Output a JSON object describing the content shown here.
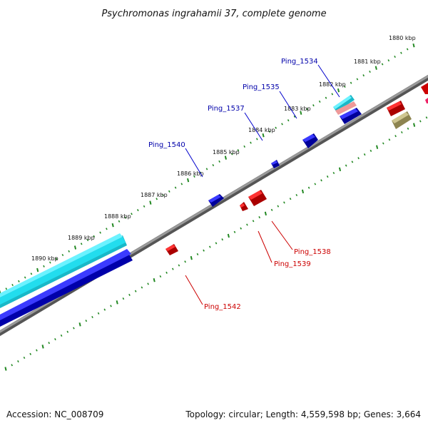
{
  "title": "Psychromonas ingrahamii 37, complete genome",
  "footer": {
    "accession": "Accession: NC_008709",
    "summary": "Topology: circular; Length: 4,559,598 bp; Genes: 3,664"
  },
  "scale_labels": [
    "1880 kbp",
    "1881 kbp",
    "1882 kbp",
    "1883 kbp",
    "1884 kbp",
    "1885 kbp",
    "1886 kbp",
    "1887 kbp",
    "1888 kbp",
    "1889 kbp",
    "1890 kbp"
  ],
  "gene_labels": {
    "ping_1534": "Ping_1534",
    "ping_1535": "Ping_1535",
    "ping_1537": "Ping_1537",
    "ping_1540": "Ping_1540",
    "ping_1538": "Ping_1538",
    "ping_1539": "Ping_1539",
    "ping_1542": "Ping_1542"
  },
  "colors": {
    "forward_strand": "#1111ee",
    "reverse_strand": "#ee1111",
    "forward_label": "#0000aa",
    "reverse_label": "#cc0000",
    "backbone": "#888888",
    "ticks": "#228822",
    "cyan": "#22ddee",
    "pink": "#ee9999",
    "olive": "#bbb077"
  }
}
